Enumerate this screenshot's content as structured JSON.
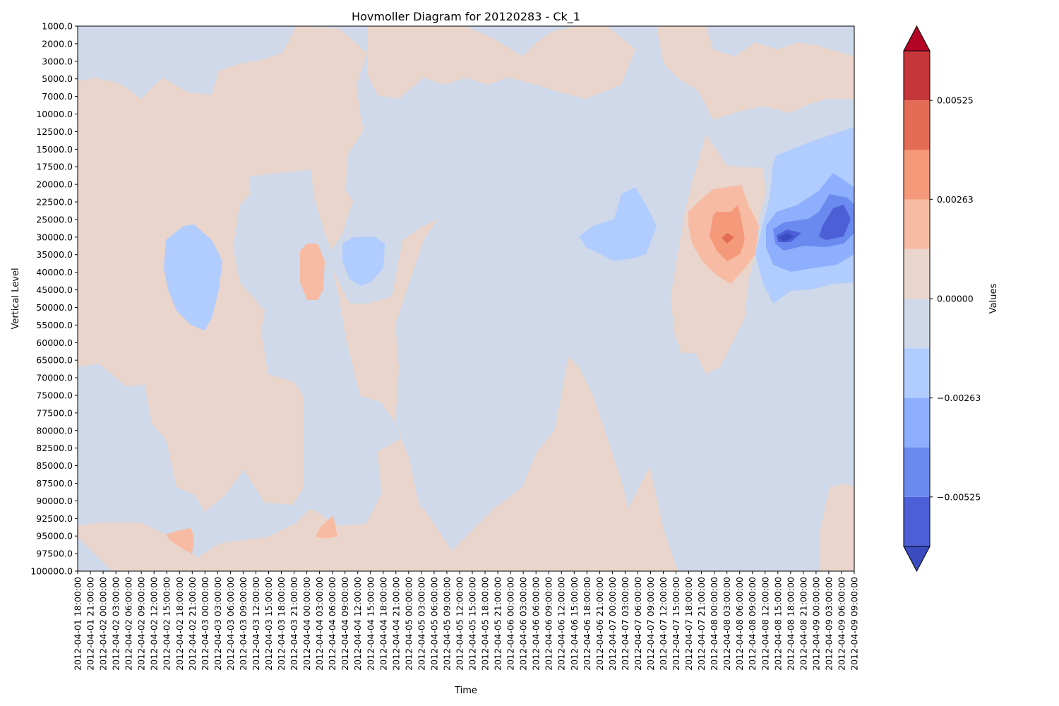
{
  "chart_data": {
    "type": "heatmap",
    "title": "Hovmoller Diagram for 20120283 - Ck_1",
    "xlabel": "Time",
    "ylabel": "Vertical Level",
    "x_ticks": [
      "2012-04-01 18:00:00",
      "2012-04-01 21:00:00",
      "2012-04-02 00:00:00",
      "2012-04-02 03:00:00",
      "2012-04-02 06:00:00",
      "2012-04-02 09:00:00",
      "2012-04-02 12:00:00",
      "2012-04-02 15:00:00",
      "2012-04-02 18:00:00",
      "2012-04-02 21:00:00",
      "2012-04-03 00:00:00",
      "2012-04-03 03:00:00",
      "2012-04-03 06:00:00",
      "2012-04-03 09:00:00",
      "2012-04-03 12:00:00",
      "2012-04-03 15:00:00",
      "2012-04-03 18:00:00",
      "2012-04-03 21:00:00",
      "2012-04-04 00:00:00",
      "2012-04-04 03:00:00",
      "2012-04-04 06:00:00",
      "2012-04-04 09:00:00",
      "2012-04-04 12:00:00",
      "2012-04-04 15:00:00",
      "2012-04-04 18:00:00",
      "2012-04-04 21:00:00",
      "2012-04-05 00:00:00",
      "2012-04-05 03:00:00",
      "2012-04-05 06:00:00",
      "2012-04-05 09:00:00",
      "2012-04-05 12:00:00",
      "2012-04-05 15:00:00",
      "2012-04-05 18:00:00",
      "2012-04-05 21:00:00",
      "2012-04-06 00:00:00",
      "2012-04-06 03:00:00",
      "2012-04-06 06:00:00",
      "2012-04-06 09:00:00",
      "2012-04-06 12:00:00",
      "2012-04-06 15:00:00",
      "2012-04-06 18:00:00",
      "2012-04-06 21:00:00",
      "2012-04-07 00:00:00",
      "2012-04-07 03:00:00",
      "2012-04-07 06:00:00",
      "2012-04-07 09:00:00",
      "2012-04-07 12:00:00",
      "2012-04-07 15:00:00",
      "2012-04-07 18:00:00",
      "2012-04-07 21:00:00",
      "2012-04-08 00:00:00",
      "2012-04-08 03:00:00",
      "2012-04-08 06:00:00",
      "2012-04-08 09:00:00",
      "2012-04-08 12:00:00",
      "2012-04-08 15:00:00",
      "2012-04-08 18:00:00",
      "2012-04-08 21:00:00",
      "2012-04-09 00:00:00",
      "2012-04-09 03:00:00",
      "2012-04-09 06:00:00",
      "2012-04-09 09:00:00"
    ],
    "y_levels": [
      "1000.0",
      "2000.0",
      "3000.0",
      "5000.0",
      "7000.0",
      "10000.0",
      "12500.0",
      "15000.0",
      "17500.0",
      "20000.0",
      "22500.0",
      "25000.0",
      "30000.0",
      "35000.0",
      "40000.0",
      "45000.0",
      "50000.0",
      "55000.0",
      "60000.0",
      "65000.0",
      "70000.0",
      "75000.0",
      "77500.0",
      "80000.0",
      "82500.0",
      "85000.0",
      "87500.0",
      "90000.0",
      "92500.0",
      "95000.0",
      "97500.0",
      "100000.0"
    ],
    "y_inverted": true,
    "colorbar": {
      "label": "Values",
      "tick_values": [
        0.00525,
        0.00263,
        0.0,
        -0.00263,
        -0.00525
      ],
      "tick_labels": [
        "0.00525",
        "0.00263",
        "0.00000",
        "−0.00263",
        "−0.00525"
      ],
      "levels": [
        -0.0065625,
        -0.00525,
        -0.0039375,
        -0.002625,
        -0.0013125,
        0.0,
        0.0013125,
        0.002625,
        0.0039375,
        0.00525,
        0.0065625
      ],
      "colors": [
        "#3b4cc0",
        "#4d5fd6",
        "#6a8af0",
        "#8daffd",
        "#b1ccfe",
        "#cfd9e9",
        "#e9d5cc",
        "#f7bba3",
        "#f49a7b",
        "#e36c54",
        "#c5363a",
        "#b40426"
      ],
      "extend": "both",
      "colormap": "coolwarm"
    },
    "features": [
      {
        "name": "positive-core",
        "time": "2012-04-08 03:00:00",
        "level": "30000.0",
        "sign": "positive",
        "band": 4
      },
      {
        "name": "negative-core-a",
        "time": "2012-04-08 18:00:00",
        "level": "30000.0",
        "sign": "negative",
        "band": 5
      },
      {
        "name": "negative-core-b",
        "time": "2012-04-09 06:00:00",
        "level": "25000.0",
        "sign": "negative",
        "band": 4
      }
    ],
    "grid": false
  }
}
